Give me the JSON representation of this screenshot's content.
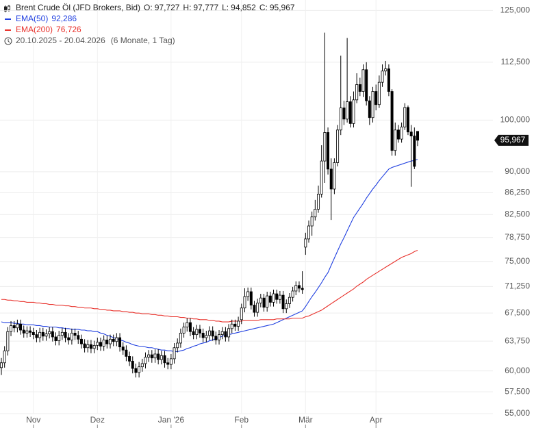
{
  "chart_data": {
    "type": "candlestick",
    "title": "Brent Crude Öl (JFD Brokers, Bid)",
    "header_stats": [
      {
        "key": "O:",
        "text": "97,727"
      },
      {
        "key": "H:",
        "text": "97,777"
      },
      {
        "key": "L:",
        "text": "94,852"
      },
      {
        "key": "C:",
        "text": "95,967"
      }
    ],
    "date_range": "20.10.2025 - 20.04.2026",
    "period": "(6 Monate, 1 Tag)",
    "last_label": "95,967",
    "log_scale": true,
    "grid": true,
    "up_color": "#ffffff",
    "down_color": "#000000",
    "ylim": [
      55,
      127.7
    ],
    "yticks": [
      {
        "value": 55,
        "label": "55,000"
      },
      {
        "value": 57.5,
        "label": "57,500"
      },
      {
        "value": 60,
        "label": "60,000"
      },
      {
        "value": 63.75,
        "label": "63,750"
      },
      {
        "value": 67.5,
        "label": "67,500"
      },
      {
        "value": 71.25,
        "label": "71,250"
      },
      {
        "value": 75,
        "label": "75,000"
      },
      {
        "value": 78.75,
        "label": "78,750"
      },
      {
        "value": 82.5,
        "label": "82,500"
      },
      {
        "value": 86.25,
        "label": "86,250"
      },
      {
        "value": 90,
        "label": "90,000"
      },
      {
        "value": 100,
        "label": "100,000"
      },
      {
        "value": 112.5,
        "label": "112,500"
      },
      {
        "value": 125,
        "label": "125,000"
      }
    ],
    "categories": [
      null,
      null,
      null,
      null,
      null,
      null,
      null,
      null,
      null,
      null,
      "Nov",
      null,
      null,
      null,
      null,
      null,
      null,
      null,
      null,
      null,
      null,
      null,
      null,
      null,
      null,
      null,
      null,
      null,
      null,
      null,
      "Dez",
      null,
      null,
      null,
      null,
      null,
      null,
      null,
      null,
      null,
      null,
      null,
      null,
      null,
      null,
      null,
      null,
      null,
      null,
      null,
      null,
      null,
      null,
      "Jan '26",
      null,
      null,
      null,
      null,
      null,
      null,
      null,
      null,
      null,
      null,
      null,
      null,
      null,
      null,
      null,
      null,
      null,
      null,
      null,
      null,
      null,
      "Feb",
      null,
      null,
      null,
      null,
      null,
      null,
      null,
      null,
      null,
      null,
      null,
      null,
      null,
      null,
      null,
      null,
      null,
      null,
      null,
      "Mär",
      null,
      null,
      null,
      null,
      null,
      null,
      null,
      null,
      null,
      null,
      null,
      null,
      null,
      null,
      null,
      null,
      null,
      null,
      null,
      null,
      null,
      "Apr",
      null,
      null,
      null,
      null,
      null,
      null,
      null,
      null,
      null,
      null,
      null,
      null,
      null
    ],
    "open": [
      60.4,
      61.0,
      62.5,
      65.0,
      65.8,
      65.5,
      66.0,
      65.2,
      64.8,
      65.1,
      64.9,
      64.6,
      64.2,
      64.9,
      64.4,
      64.7,
      65.0,
      64.3,
      63.8,
      64.5,
      64.9,
      64.2,
      63.9,
      64.8,
      64.5,
      64.0,
      63.4,
      62.9,
      63.3,
      62.8,
      63.2,
      63.6,
      63.1,
      63.9,
      63.4,
      64.0,
      63.7,
      64.2,
      63.0,
      62.6,
      61.8,
      61.2,
      60.3,
      59.8,
      60.5,
      60.9,
      61.7,
      62.0,
      61.6,
      62.1,
      61.4,
      61.9,
      61.0,
      60.8,
      61.5,
      62.9,
      63.5,
      64.8,
      65.6,
      66.2,
      65.0,
      64.6,
      65.3,
      64.8,
      64.2,
      64.5,
      65.1,
      64.4,
      63.9,
      64.6,
      65.0,
      64.3,
      65.4,
      66.0,
      65.7,
      66.6,
      68.2,
      69.8,
      70.5,
      68.6,
      67.6,
      68.9,
      69.6,
      68.3,
      69.9,
      69.0,
      70.2,
      69.4,
      70.0,
      68.1,
      68.8,
      69.7,
      70.6,
      71.4,
      71.0,
      77.2,
      78.5,
      80.6,
      82.1,
      83.4,
      86.0,
      92.0,
      97.5,
      90.5,
      86.9,
      91.7,
      98.0,
      102.5,
      100.2,
      103.8,
      99.3,
      104.2,
      107.5,
      106.0,
      110.8,
      104.0,
      100.5,
      106.0,
      103.2,
      108.0,
      110.5,
      111.0,
      106.0,
      94.0,
      98.0,
      96.2,
      98.6,
      102.6,
      97.6,
      96.8,
      97.727
    ],
    "high": [
      61.6,
      63.1,
      65.6,
      66.4,
      66.4,
      66.6,
      66.6,
      65.8,
      65.7,
      65.7,
      65.5,
      65.2,
      65.5,
      65.5,
      65.3,
      65.6,
      65.6,
      64.9,
      65.1,
      65.5,
      65.5,
      64.8,
      65.4,
      65.4,
      65.1,
      64.6,
      64.0,
      63.9,
      63.9,
      63.8,
      64.2,
      64.2,
      64.5,
      64.5,
      64.6,
      64.6,
      64.8,
      64.8,
      63.6,
      63.2,
      62.4,
      61.8,
      60.9,
      61.1,
      61.5,
      62.3,
      62.6,
      62.6,
      62.7,
      62.7,
      62.5,
      62.5,
      61.6,
      62.1,
      63.5,
      64.1,
      65.4,
      66.2,
      66.8,
      66.8,
      65.6,
      65.9,
      65.9,
      65.4,
      65.1,
      65.7,
      65.7,
      65.0,
      65.2,
      65.6,
      65.6,
      66.0,
      66.6,
      66.6,
      67.0,
      68.8,
      71.0,
      71.1,
      71.1,
      69.2,
      69.5,
      70.2,
      70.2,
      70.5,
      70.5,
      70.8,
      70.8,
      70.6,
      70.6,
      69.4,
      70.3,
      71.2,
      72.0,
      72.0,
      73.5,
      79.5,
      81.5,
      83.0,
      85.0,
      87.5,
      95.0,
      119.5,
      98.5,
      92.5,
      92.5,
      99.0,
      114.0,
      104.0,
      118.2,
      105.0,
      106.0,
      110.0,
      109.0,
      112.0,
      112.5,
      105.0,
      107.0,
      107.5,
      109.5,
      112.0,
      112.8,
      112.0,
      106.5,
      99.5,
      99.0,
      99.5,
      103.5,
      103.0,
      99.0,
      98.5,
      97.777
    ],
    "low": [
      59.5,
      60.4,
      61.9,
      64.4,
      64.9,
      64.9,
      64.6,
      64.2,
      64.2,
      64.3,
      64.0,
      63.6,
      63.6,
      63.8,
      63.8,
      64.1,
      63.7,
      63.2,
      63.2,
      63.9,
      63.6,
      63.3,
      63.3,
      63.9,
      63.4,
      62.8,
      62.3,
      62.3,
      62.2,
      62.2,
      62.6,
      62.5,
      62.5,
      62.8,
      62.8,
      63.1,
      63.1,
      62.4,
      62.0,
      61.2,
      60.6,
      59.7,
      59.2,
      59.2,
      59.9,
      60.3,
      61.1,
      61.0,
      61.0,
      60.8,
      60.8,
      60.4,
      60.2,
      60.2,
      60.9,
      62.3,
      62.9,
      64.2,
      65.0,
      64.4,
      64.0,
      64.0,
      64.2,
      63.6,
      63.6,
      63.9,
      63.8,
      63.3,
      63.3,
      64.0,
      63.7,
      63.7,
      64.8,
      65.1,
      65.1,
      66.0,
      67.6,
      69.2,
      68.0,
      67.0,
      67.0,
      68.3,
      67.7,
      67.7,
      68.4,
      68.4,
      68.8,
      68.8,
      67.5,
      67.5,
      68.2,
      69.1,
      70.0,
      70.4,
      70.2,
      76.0,
      77.9,
      79.0,
      81.5,
      82.8,
      85.4,
      88.0,
      89.5,
      81.6,
      86.0,
      91.0,
      97.0,
      99.0,
      99.5,
      98.5,
      98.5,
      103.5,
      105.0,
      104.8,
      103.0,
      99.0,
      99.5,
      102.0,
      102.5,
      107.0,
      109.5,
      105.0,
      93.0,
      93.0,
      95.5,
      95.5,
      98.0,
      97.0,
      87.3,
      90.5,
      94.852
    ],
    "close": [
      61.0,
      62.5,
      65.0,
      65.8,
      65.5,
      66.0,
      65.2,
      64.8,
      65.1,
      64.9,
      64.6,
      64.2,
      64.9,
      64.4,
      64.7,
      65.0,
      64.3,
      63.8,
      64.5,
      64.9,
      64.2,
      63.9,
      64.8,
      64.5,
      64.0,
      63.4,
      62.9,
      63.3,
      62.8,
      63.2,
      63.6,
      63.1,
      63.9,
      63.4,
      64.0,
      63.7,
      64.2,
      63.0,
      62.6,
      61.8,
      61.2,
      60.3,
      59.8,
      60.5,
      60.9,
      61.7,
      62.0,
      61.6,
      62.1,
      61.4,
      61.9,
      61.0,
      60.8,
      61.5,
      62.9,
      63.5,
      64.8,
      65.6,
      66.2,
      65.0,
      64.6,
      65.3,
      64.8,
      64.2,
      64.5,
      65.1,
      64.4,
      63.9,
      64.6,
      65.0,
      64.3,
      65.4,
      66.0,
      65.7,
      66.4,
      68.2,
      69.8,
      70.5,
      68.6,
      67.6,
      68.9,
      69.6,
      68.3,
      69.9,
      69.0,
      70.2,
      69.4,
      70.0,
      68.1,
      68.8,
      69.7,
      70.6,
      71.4,
      71.0,
      70.8,
      78.5,
      80.6,
      82.1,
      83.4,
      86.0,
      92.0,
      97.5,
      90.5,
      86.9,
      91.7,
      98.0,
      102.5,
      100.2,
      103.8,
      99.3,
      104.2,
      107.5,
      106.0,
      110.8,
      104.0,
      100.5,
      106.0,
      103.2,
      108.0,
      110.5,
      111.0,
      106.0,
      94.0,
      98.0,
      96.2,
      98.6,
      102.6,
      97.6,
      96.8,
      91.0,
      95.967
    ],
    "series": [
      {
        "name": "EMA(50)",
        "color": "#1f3fe0",
        "last_label": "92,286",
        "values": [
          66.3,
          66.2,
          66.2,
          66.2,
          66.1,
          66.1,
          66.0,
          66.0,
          65.9,
          65.9,
          65.9,
          65.8,
          65.8,
          65.7,
          65.7,
          65.6,
          65.6,
          65.6,
          65.5,
          65.5,
          65.4,
          65.4,
          65.3,
          65.3,
          65.3,
          65.2,
          65.2,
          65.1,
          65.1,
          65.0,
          65.0,
          64.8,
          64.7,
          64.5,
          64.4,
          64.2,
          64.1,
          63.9,
          63.8,
          63.6,
          63.5,
          63.3,
          63.2,
          63.1,
          63.1,
          63.0,
          62.9,
          62.9,
          62.8,
          62.7,
          62.6,
          62.6,
          62.5,
          62.5,
          62.4,
          62.4,
          62.5,
          62.6,
          62.8,
          62.9,
          63.1,
          63.2,
          63.4,
          63.5,
          63.6,
          63.8,
          63.9,
          64.1,
          64.2,
          64.4,
          64.5,
          64.6,
          64.7,
          64.8,
          64.9,
          65.0,
          65.1,
          65.2,
          65.3,
          65.4,
          65.5,
          65.6,
          65.7,
          65.8,
          65.9,
          66.0,
          66.2,
          66.4,
          66.6,
          66.8,
          67.0,
          67.2,
          67.4,
          67.6,
          67.8,
          68.4,
          69.1,
          69.8,
          70.4,
          71.1,
          71.8,
          72.6,
          73.3,
          74.4,
          75.5,
          76.6,
          77.7,
          78.7,
          79.8,
          80.9,
          82.0,
          82.8,
          83.6,
          84.4,
          85.3,
          86.1,
          86.9,
          87.6,
          88.4,
          89.1,
          89.8,
          90.5,
          90.8,
          91.0,
          91.2,
          91.4,
          91.6,
          91.8,
          92.0,
          92.1,
          92.3
        ]
      },
      {
        "name": "EMA(200)",
        "color": "#e8302a",
        "last_label": "76,726",
        "values": [
          69.4,
          69.4,
          69.3,
          69.3,
          69.2,
          69.2,
          69.1,
          69.1,
          69.0,
          69.0,
          69.0,
          68.9,
          68.9,
          68.8,
          68.8,
          68.7,
          68.7,
          68.6,
          68.6,
          68.6,
          68.5,
          68.5,
          68.4,
          68.4,
          68.3,
          68.3,
          68.2,
          68.2,
          68.2,
          68.1,
          68.1,
          68.0,
          68.0,
          67.9,
          67.9,
          67.8,
          67.8,
          67.8,
          67.7,
          67.7,
          67.6,
          67.6,
          67.5,
          67.5,
          67.4,
          67.4,
          67.4,
          67.3,
          67.3,
          67.2,
          67.2,
          67.1,
          67.1,
          67.0,
          67.0,
          67.0,
          66.9,
          66.9,
          66.8,
          66.8,
          66.7,
          66.7,
          66.6,
          66.6,
          66.6,
          66.5,
          66.5,
          66.4,
          66.4,
          66.3,
          66.3,
          66.3,
          66.4,
          66.4,
          66.4,
          66.4,
          66.5,
          66.5,
          66.5,
          66.5,
          66.5,
          66.6,
          66.6,
          66.6,
          66.6,
          66.6,
          66.7,
          66.7,
          66.7,
          66.7,
          66.7,
          66.8,
          66.8,
          66.8,
          66.8,
          67.0,
          67.1,
          67.3,
          67.5,
          67.7,
          67.9,
          68.2,
          68.5,
          68.8,
          69.1,
          69.4,
          69.7,
          70.0,
          70.3,
          70.6,
          70.9,
          71.3,
          71.6,
          71.9,
          72.3,
          72.6,
          72.9,
          73.2,
          73.5,
          73.8,
          74.1,
          74.4,
          74.7,
          75.0,
          75.3,
          75.6,
          75.8,
          76.0,
          76.2,
          76.5,
          76.7
        ]
      }
    ]
  }
}
